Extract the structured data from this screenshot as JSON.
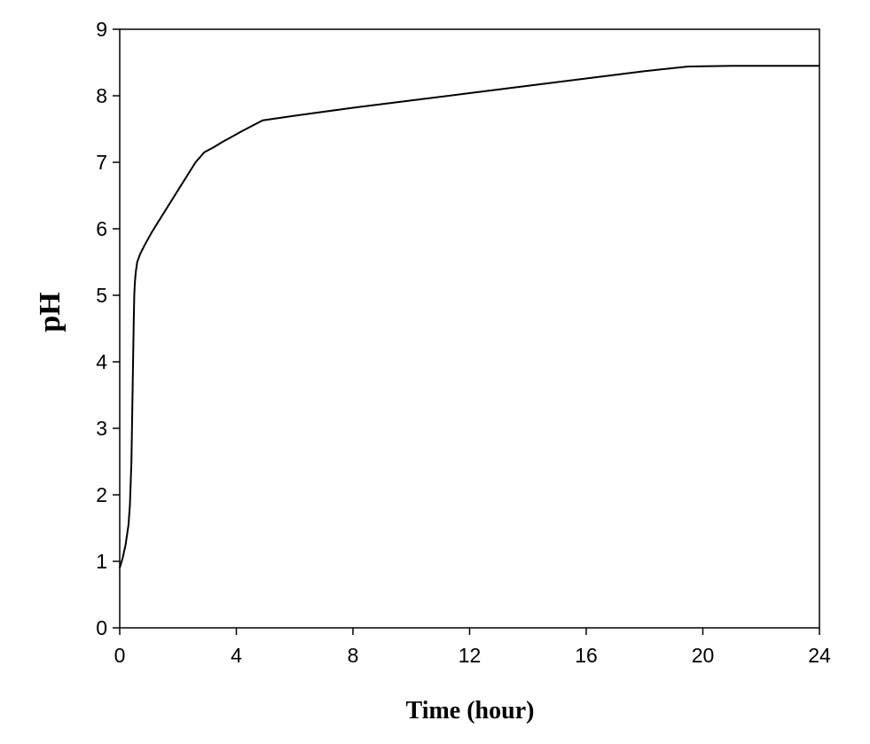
{
  "chart_data": {
    "type": "line",
    "title": "",
    "xlabel": "Time (hour)",
    "ylabel": "pH",
    "xlim": [
      0,
      24
    ],
    "ylim": [
      0,
      9
    ],
    "xticks": [
      0,
      4,
      8,
      12,
      16,
      20,
      24
    ],
    "yticks": [
      0,
      1,
      2,
      3,
      4,
      5,
      6,
      7,
      8,
      9
    ],
    "grid": false,
    "line_color": "#000000",
    "series": [
      {
        "x": [
          0,
          0.1,
          0.2,
          0.3,
          0.35,
          0.4,
          0.45,
          0.48,
          0.5,
          0.52,
          0.55,
          0.6,
          0.7,
          0.85,
          1.1,
          1.6,
          2.1,
          2.6,
          2.9,
          3.2,
          3.5,
          4.2,
          4.9,
          6,
          8,
          10,
          12,
          14,
          16,
          18,
          19.5,
          21,
          22.5,
          24
        ],
        "y": [
          0.9,
          1.05,
          1.25,
          1.55,
          1.85,
          2.5,
          3.8,
          4.6,
          5.0,
          5.2,
          5.35,
          5.5,
          5.62,
          5.75,
          5.95,
          6.3,
          6.65,
          7.0,
          7.15,
          7.22,
          7.3,
          7.47,
          7.63,
          7.7,
          7.82,
          7.93,
          8.04,
          8.15,
          8.26,
          8.37,
          8.44,
          8.45,
          8.45,
          8.45
        ]
      }
    ]
  }
}
